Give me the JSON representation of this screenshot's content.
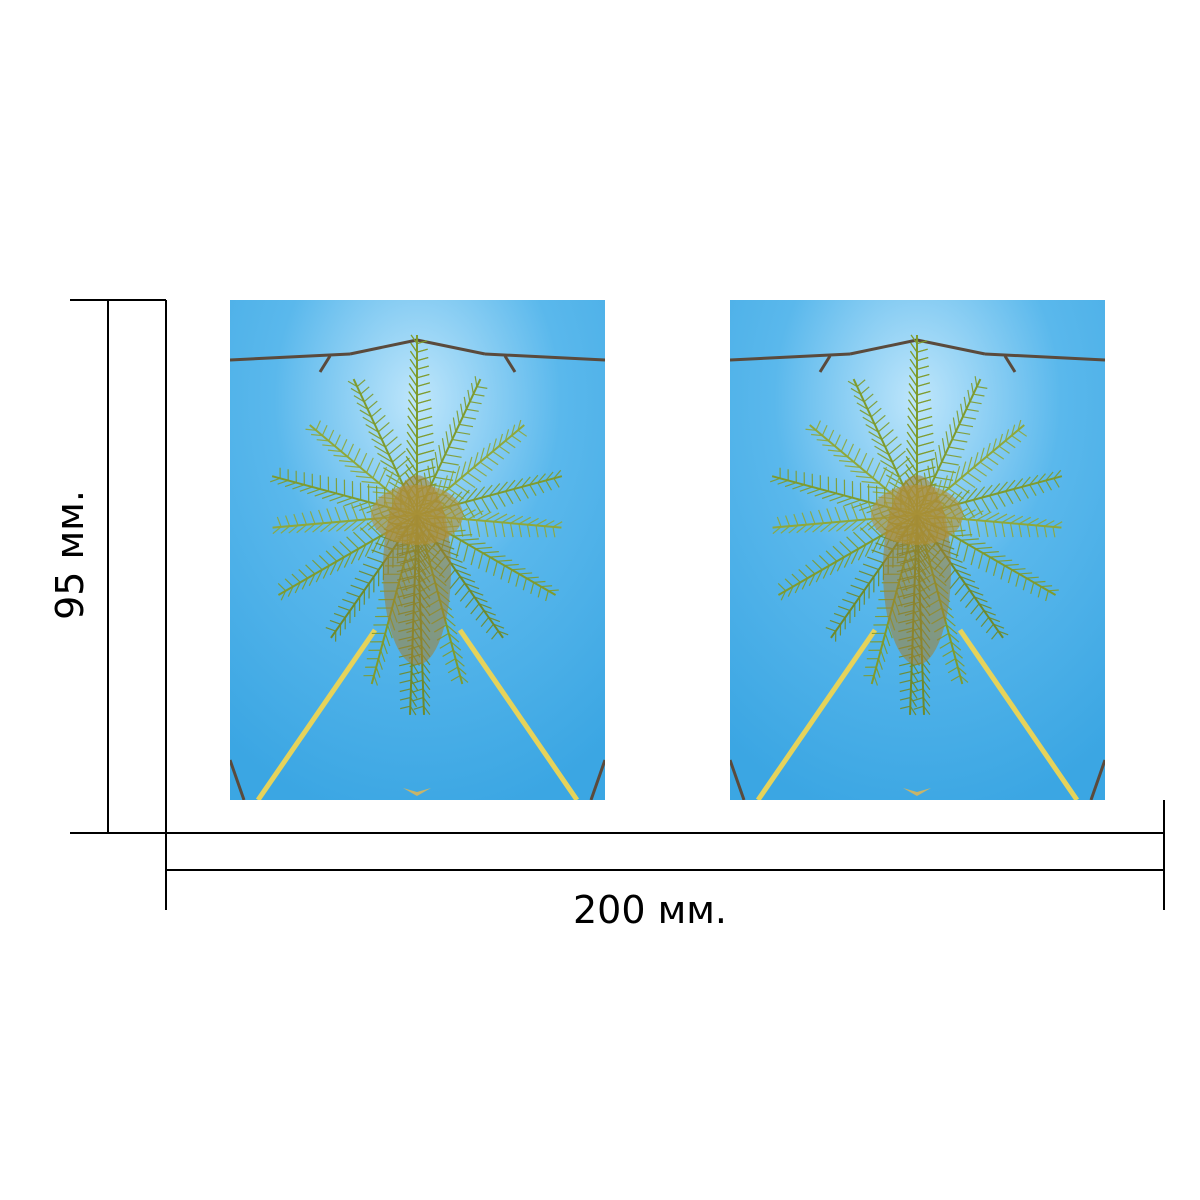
{
  "dimensions": {
    "height_label": "95 мм.",
    "width_label": "200 мм."
  },
  "panels": [
    {
      "name": "left-photo-panel",
      "subject": "palm-tree-kaleidoscope"
    },
    {
      "name": "right-photo-panel",
      "subject": "palm-tree-kaleidoscope"
    }
  ],
  "colors": {
    "sky": "#5ab8ec",
    "frond": "#7f9b2d",
    "trunk": "#a4802e",
    "line": "#000000"
  }
}
